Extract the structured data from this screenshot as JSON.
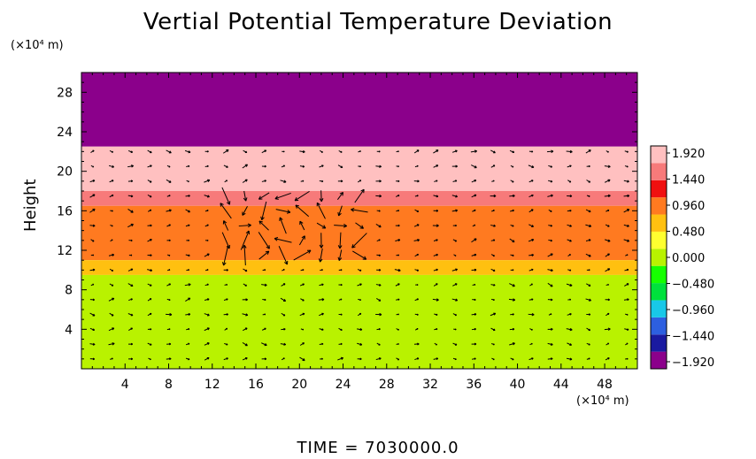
{
  "chart_data": {
    "type": "heatmap",
    "title": "Vertial Potential Temperature Deviation",
    "ylabel": "Height",
    "y_unit": "(×10⁴ m)",
    "x_unit": "(×10⁴ m)",
    "xlim": [
      0,
      51
    ],
    "ylim": [
      0,
      30
    ],
    "x_ticks": [
      4,
      8,
      12,
      16,
      20,
      24,
      28,
      32,
      36,
      40,
      44,
      48
    ],
    "y_ticks": [
      4,
      8,
      12,
      16,
      20,
      24,
      28
    ],
    "layers": [
      {
        "y_from": 22.5,
        "y_to": 30,
        "value": -1.92
      },
      {
        "y_from": 18.0,
        "y_to": 22.5,
        "value": 1.92
      },
      {
        "y_from": 16.5,
        "y_to": 18.0,
        "value": 1.44
      },
      {
        "y_from": 11.0,
        "y_to": 16.5,
        "value": 0.96
      },
      {
        "y_from": 9.5,
        "y_to": 11.0,
        "value": 0.72
      },
      {
        "y_from": 0,
        "y_to": 9.5,
        "value": 0.0
      }
    ],
    "colorbar": {
      "min": -1.92,
      "max": 1.92,
      "labels": [
        "1.920",
        "1.440",
        "0.960",
        "0.480",
        "0.000",
        "−0.480",
        "−0.960",
        "−1.440",
        "−1.920"
      ],
      "colors": [
        "#8b008b",
        "#1a1aa0",
        "#2d5fe0",
        "#18c8e8",
        "#00e13c",
        "#16ff00",
        "#b9f200",
        "#ffff30",
        "#ffc010",
        "#ff7a20",
        "#f01010",
        "#f77a7a",
        "#ffc0c0"
      ]
    },
    "grid": false,
    "legend": "colorbar-right"
  },
  "footer": {
    "time_label": "TIME  =  7030000.0"
  }
}
